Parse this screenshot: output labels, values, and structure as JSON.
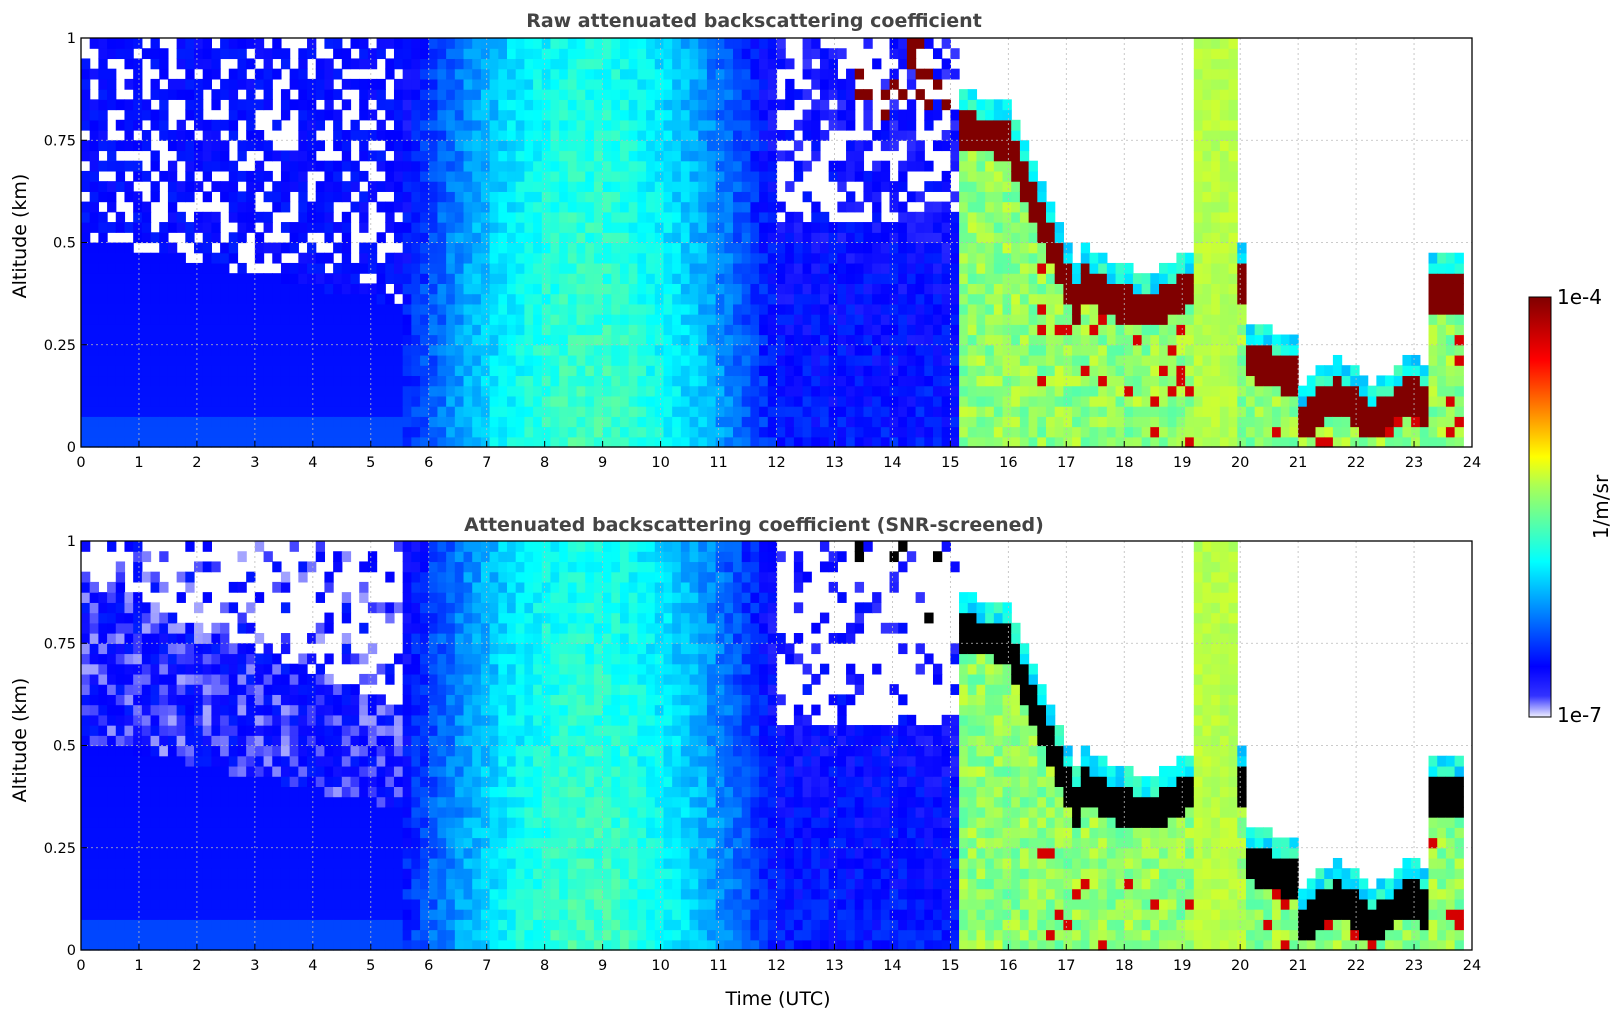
{
  "chart_data": [
    {
      "type": "heatmap",
      "title": "Raw attenuated backscattering coefficient",
      "xlabel": "",
      "ylabel": "Altitude (km)",
      "xlim": [
        0,
        24
      ],
      "ylim": [
        0,
        1
      ],
      "xticks": [
        "0",
        "1",
        "2",
        "3",
        "4",
        "5",
        "6",
        "7",
        "8",
        "9",
        "10",
        "11",
        "12",
        "13",
        "14",
        "15",
        "16",
        "17",
        "18",
        "19",
        "20",
        "21",
        "22",
        "23",
        "24"
      ],
      "yticks": [
        "0",
        "0.25",
        "0.5",
        "0.75",
        "1"
      ],
      "grid": true,
      "screened": false
    },
    {
      "type": "heatmap",
      "title": "Attenuated backscattering coefficient (SNR-screened)",
      "xlabel": "Time (UTC)",
      "ylabel": "Altitude (km)",
      "xlim": [
        0,
        24
      ],
      "ylim": [
        0,
        1
      ],
      "xticks": [
        "0",
        "1",
        "2",
        "3",
        "4",
        "5",
        "6",
        "7",
        "8",
        "9",
        "10",
        "11",
        "12",
        "13",
        "14",
        "15",
        "16",
        "17",
        "18",
        "19",
        "20",
        "21",
        "22",
        "23",
        "24"
      ],
      "yticks": [
        "0",
        "0.25",
        "0.5",
        "0.75",
        "1"
      ],
      "grid": true,
      "screened": true
    }
  ],
  "colorbar": {
    "label": "1/m/sr",
    "max_label": "1e-4",
    "min_label": "1e-7",
    "scale": "log",
    "range": [
      1e-07,
      0.0001
    ],
    "colormap": "jet",
    "position": "right"
  },
  "colors": {
    "title": "#444444",
    "grid": "#bbbbbb",
    "overrange_raw": "#800000",
    "overrange_screened": "#000000"
  }
}
